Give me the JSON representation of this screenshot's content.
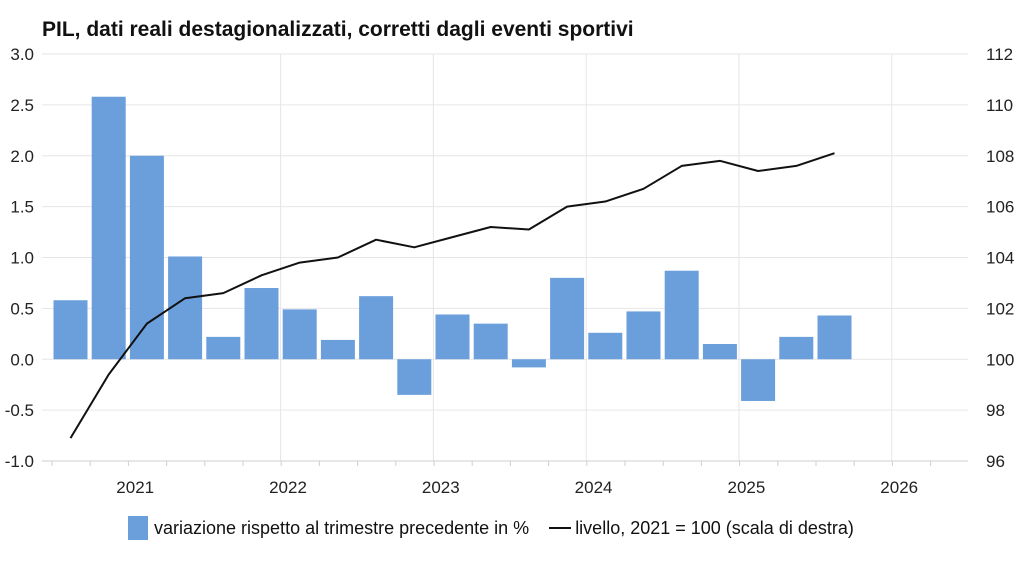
{
  "chart_data": {
    "type": "bar+line",
    "title": "PIL, dati reali destagionalizzati, corretti dagli eventi sportivi",
    "colors": {
      "bar": "#6a9fdc",
      "line": "#111111",
      "grid": "#e6e6e6"
    },
    "legend_position": "bottom",
    "grid": true,
    "x_ticks": [
      "2021",
      "2022",
      "2023",
      "2024",
      "2025",
      "2026"
    ],
    "y_left": {
      "ylim": [
        -1.0,
        3.0
      ],
      "ticks": [
        "-1.0",
        "-0.5",
        "0.0",
        "0.5",
        "1.0",
        "1.5",
        "2.0",
        "2.5",
        "3.0"
      ]
    },
    "y_right": {
      "ylim": [
        96,
        112
      ],
      "ticks": [
        "96",
        "98",
        "100",
        "102",
        "104",
        "106",
        "108",
        "110",
        "112"
      ]
    },
    "periods": [
      "2020-Q3",
      "2020-Q4",
      "2021-Q1",
      "2021-Q2",
      "2021-Q3",
      "2021-Q4",
      "2022-Q1",
      "2022-Q2",
      "2022-Q3",
      "2022-Q4",
      "2023-Q1",
      "2023-Q2",
      "2023-Q3",
      "2023-Q4",
      "2024-Q1",
      "2024-Q2",
      "2024-Q3",
      "2024-Q4",
      "2025-Q1",
      "2025-Q2",
      "2025-Q3"
    ],
    "series": [
      {
        "name": "variazione rispetto al trimestre precedente in %",
        "axis": "left",
        "kind": "bar",
        "values": [
          0.58,
          2.58,
          2.0,
          1.01,
          0.22,
          0.7,
          0.49,
          0.19,
          0.62,
          -0.35,
          0.44,
          0.35,
          -0.08,
          0.8,
          0.26,
          0.47,
          0.87,
          0.15,
          -0.41,
          0.22,
          0.43
        ]
      },
      {
        "name": "livello, 2021 = 100 (scala di destra)",
        "axis": "right",
        "kind": "line",
        "values": [
          96.9,
          99.4,
          101.4,
          102.4,
          102.6,
          103.3,
          103.8,
          104.0,
          104.7,
          104.4,
          104.8,
          105.2,
          105.1,
          106.0,
          106.2,
          106.7,
          107.6,
          107.8,
          107.4,
          107.6,
          108.1
        ]
      }
    ]
  }
}
